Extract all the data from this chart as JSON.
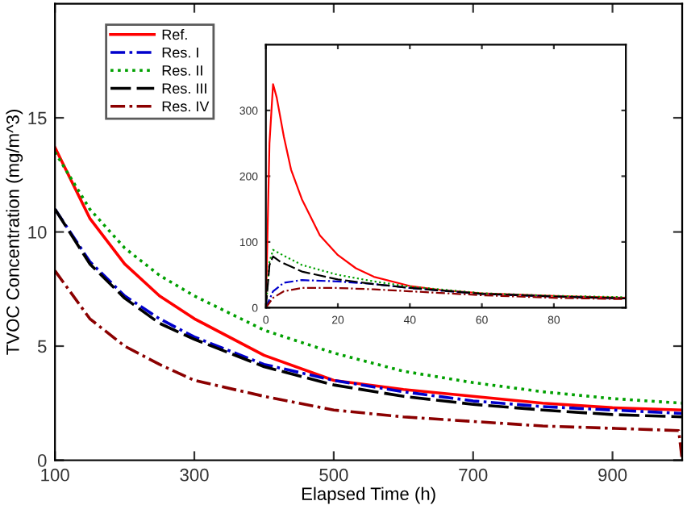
{
  "chart_data": [
    {
      "type": "line",
      "xlabel": "Elapsed Time (h)",
      "ylabel": "TVOC Concentration (mg/m^3)",
      "xlim": [
        100,
        1000
      ],
      "ylim": [
        0,
        20
      ],
      "xticks": [
        100,
        300,
        500,
        700,
        900
      ],
      "yticks": [
        0,
        5,
        10,
        15
      ],
      "legend": "top left",
      "grid": false,
      "series": [
        {
          "name": "Ref.",
          "color": "#ff0000",
          "line_style": "solid",
          "x": [
            100,
            150,
            200,
            250,
            300,
            400,
            500,
            600,
            700,
            800,
            900,
            1000
          ],
          "values": [
            13.7,
            10.6,
            8.6,
            7.2,
            6.2,
            4.6,
            3.5,
            3.1,
            2.8,
            2.5,
            2.3,
            2.2
          ]
        },
        {
          "name": "Res. I",
          "color": "#0000cc",
          "line_style": "dashdot",
          "x": [
            100,
            150,
            200,
            250,
            300,
            400,
            500,
            600,
            700,
            800,
            900,
            1000
          ],
          "values": [
            11.0,
            8.7,
            7.2,
            6.2,
            5.4,
            4.2,
            3.5,
            3.0,
            2.6,
            2.35,
            2.2,
            2.05
          ]
        },
        {
          "name": "Res. II",
          "color": "#00a000",
          "line_style": "dotted",
          "x": [
            100,
            150,
            200,
            250,
            300,
            400,
            500,
            600,
            700,
            800,
            900,
            1000
          ],
          "values": [
            13.5,
            11.0,
            9.3,
            8.1,
            7.2,
            5.7,
            4.7,
            3.9,
            3.4,
            3.0,
            2.7,
            2.5
          ]
        },
        {
          "name": "Res. III",
          "color": "#000000",
          "line_style": "dashed",
          "x": [
            100,
            150,
            200,
            250,
            300,
            400,
            500,
            600,
            700,
            800,
            900,
            1000
          ],
          "values": [
            11.0,
            8.6,
            7.1,
            6.0,
            5.3,
            4.1,
            3.3,
            2.8,
            2.45,
            2.2,
            2.0,
            1.9
          ]
        },
        {
          "name": "Res. IV",
          "color": "#8b0000",
          "line_style": "dashdot",
          "x": [
            100,
            150,
            200,
            250,
            300,
            400,
            500,
            600,
            700,
            800,
            900,
            995,
            1000
          ],
          "values": [
            8.3,
            6.2,
            5.0,
            4.2,
            3.5,
            2.8,
            2.2,
            1.9,
            1.7,
            1.5,
            1.4,
            1.3,
            0
          ]
        }
      ]
    },
    {
      "type": "line",
      "xlim": [
        0,
        100
      ],
      "ylim": [
        0,
        400
      ],
      "xticks": [
        0,
        20,
        40,
        60,
        80
      ],
      "yticks": [
        0,
        100,
        200,
        300
      ],
      "grid": false,
      "series": [
        {
          "color": "#ff0000",
          "line_style": "solid",
          "x": [
            0,
            1,
            2,
            3,
            5,
            7,
            10,
            15,
            20,
            25,
            30,
            40,
            50,
            60,
            80,
            100
          ],
          "values": [
            0,
            250,
            340,
            320,
            260,
            210,
            165,
            110,
            80,
            60,
            47,
            33,
            26,
            22,
            18,
            15
          ]
        },
        {
          "color": "#0000cc",
          "line_style": "dashdot",
          "x": [
            0,
            2,
            5,
            10,
            20,
            30,
            40,
            60,
            80,
            100
          ],
          "values": [
            0,
            25,
            38,
            42,
            40,
            36,
            30,
            21,
            17,
            14
          ]
        },
        {
          "color": "#00a000",
          "line_style": "dotted",
          "x": [
            0,
            1,
            2,
            4,
            10,
            20,
            30,
            40,
            60,
            80,
            100
          ],
          "values": [
            0,
            70,
            88,
            82,
            65,
            50,
            40,
            32,
            22,
            18,
            16
          ]
        },
        {
          "color": "#000000",
          "line_style": "dashed",
          "x": [
            0,
            1,
            2,
            4,
            10,
            20,
            30,
            40,
            60,
            80,
            100
          ],
          "values": [
            0,
            65,
            78,
            70,
            55,
            43,
            36,
            30,
            21,
            17,
            14
          ]
        },
        {
          "color": "#8b0000",
          "line_style": "dashdot",
          "x": [
            0,
            2,
            5,
            10,
            20,
            30,
            40,
            60,
            80,
            100
          ],
          "values": [
            0,
            15,
            25,
            30,
            30,
            28,
            25,
            19,
            15,
            13
          ]
        }
      ]
    }
  ]
}
